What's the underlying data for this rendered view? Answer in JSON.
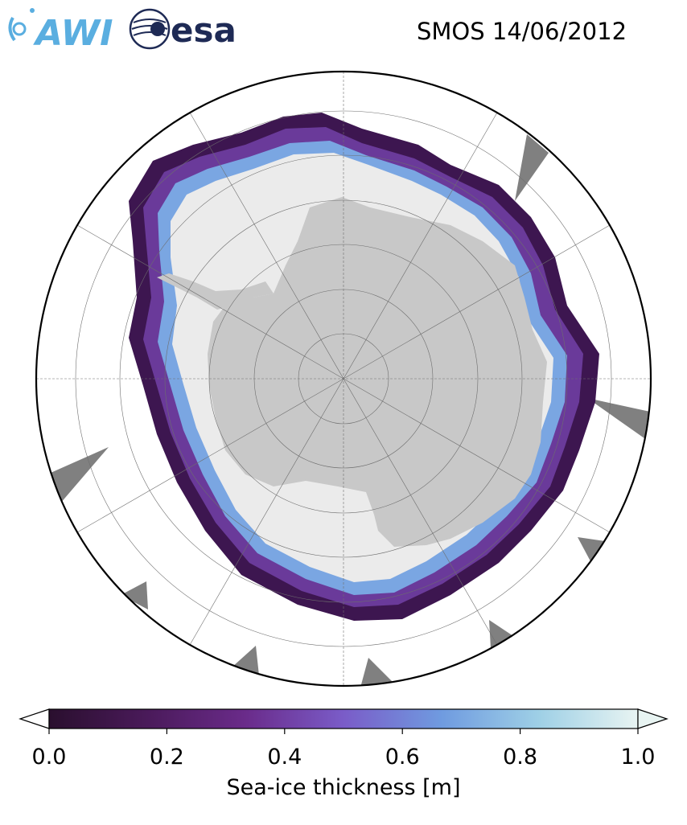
{
  "header": {
    "date_title": "SMOS 14/06/2012"
  },
  "logos": {
    "awi": {
      "text": "AWI",
      "color": "#5aaee0"
    },
    "esa": {
      "text": "esa",
      "color": "#1e2a55"
    }
  },
  "map": {
    "projection": "south-polar-stereographic",
    "land_color": "#c8c8c8",
    "no_data_color": "#808080",
    "open_water_color": "#ffffff",
    "thick_ice_color": "#ebebeb",
    "graticule": "on"
  },
  "colorbar": {
    "label": "Sea-ice thickness [m]",
    "range": [
      0.0,
      1.0
    ],
    "ticks": [
      "0.0",
      "0.2",
      "0.4",
      "0.6",
      "0.8",
      "1.0"
    ],
    "colormap": [
      "#2a0f2e",
      "#4a1a5a",
      "#6a2b8a",
      "#7a5cc8",
      "#6f9be0",
      "#9fd0e6",
      "#e8f4f2"
    ],
    "extend": "both"
  }
}
